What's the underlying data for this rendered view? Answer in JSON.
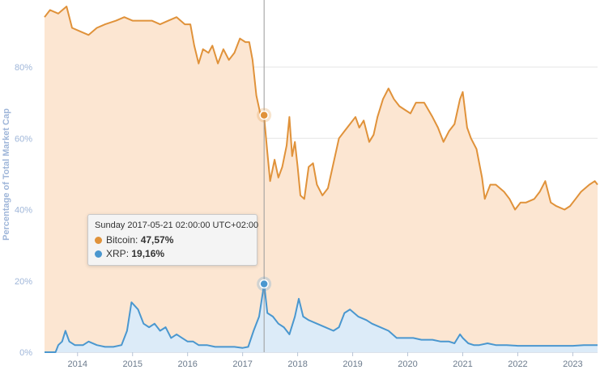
{
  "chart_data": {
    "type": "area",
    "ylabel": "Percentage of Total Market Cap",
    "y_ticks": [
      "0%",
      "20%",
      "40%",
      "60%",
      "80%"
    ],
    "y_tick_values": [
      0,
      20,
      40,
      60,
      80
    ],
    "x_ticks": [
      "2014",
      "2015",
      "2016",
      "2017",
      "2018",
      "2019",
      "2020",
      "2021",
      "2022",
      "2023"
    ],
    "x_tick_values": [
      2014,
      2015,
      2016,
      2017,
      2018,
      2019,
      2020,
      2021,
      2022,
      2023
    ],
    "xlim": [
      2013.4,
      2023.45
    ],
    "ylim": [
      0,
      97
    ],
    "grid": "horizontal",
    "series": [
      {
        "name": "Bitcoin",
        "color": "#e0923a",
        "fill": "#fce6d2",
        "points": [
          [
            2013.4,
            94
          ],
          [
            2013.5,
            96
          ],
          [
            2013.65,
            95
          ],
          [
            2013.8,
            97
          ],
          [
            2013.9,
            91
          ],
          [
            2014.05,
            90
          ],
          [
            2014.2,
            89
          ],
          [
            2014.35,
            91
          ],
          [
            2014.5,
            92
          ],
          [
            2014.7,
            93
          ],
          [
            2014.85,
            94
          ],
          [
            2015.0,
            93
          ],
          [
            2015.15,
            93
          ],
          [
            2015.35,
            93
          ],
          [
            2015.5,
            92
          ],
          [
            2015.65,
            93
          ],
          [
            2015.8,
            94
          ],
          [
            2015.95,
            92
          ],
          [
            2016.05,
            92
          ],
          [
            2016.12,
            86
          ],
          [
            2016.2,
            81
          ],
          [
            2016.28,
            85
          ],
          [
            2016.38,
            84
          ],
          [
            2016.45,
            86
          ],
          [
            2016.55,
            81
          ],
          [
            2016.65,
            85
          ],
          [
            2016.75,
            82
          ],
          [
            2016.85,
            84
          ],
          [
            2016.95,
            88
          ],
          [
            2017.05,
            87
          ],
          [
            2017.12,
            87
          ],
          [
            2017.18,
            82
          ],
          [
            2017.25,
            72
          ],
          [
            2017.32,
            67
          ],
          [
            2017.39,
            66
          ],
          [
            2017.45,
            56
          ],
          [
            2017.5,
            48
          ],
          [
            2017.58,
            54
          ],
          [
            2017.65,
            49
          ],
          [
            2017.72,
            52
          ],
          [
            2017.8,
            58
          ],
          [
            2017.85,
            66
          ],
          [
            2017.9,
            55
          ],
          [
            2017.95,
            59
          ],
          [
            2018.0,
            52
          ],
          [
            2018.05,
            44
          ],
          [
            2018.12,
            43
          ],
          [
            2018.2,
            52
          ],
          [
            2018.28,
            53
          ],
          [
            2018.35,
            47
          ],
          [
            2018.45,
            44
          ],
          [
            2018.55,
            46
          ],
          [
            2018.65,
            53
          ],
          [
            2018.75,
            60
          ],
          [
            2018.85,
            62
          ],
          [
            2018.95,
            64
          ],
          [
            2019.05,
            66
          ],
          [
            2019.12,
            63
          ],
          [
            2019.2,
            65
          ],
          [
            2019.3,
            59
          ],
          [
            2019.38,
            61
          ],
          [
            2019.45,
            66
          ],
          [
            2019.55,
            71
          ],
          [
            2019.65,
            74
          ],
          [
            2019.75,
            71
          ],
          [
            2019.85,
            69
          ],
          [
            2019.95,
            68
          ],
          [
            2020.05,
            67
          ],
          [
            2020.15,
            70
          ],
          [
            2020.3,
            70
          ],
          [
            2020.45,
            66
          ],
          [
            2020.55,
            63
          ],
          [
            2020.65,
            59
          ],
          [
            2020.75,
            62
          ],
          [
            2020.85,
            64
          ],
          [
            2020.95,
            71
          ],
          [
            2021.0,
            73
          ],
          [
            2021.08,
            63
          ],
          [
            2021.15,
            60
          ],
          [
            2021.25,
            57
          ],
          [
            2021.35,
            49
          ],
          [
            2021.4,
            43
          ],
          [
            2021.5,
            47
          ],
          [
            2021.6,
            47
          ],
          [
            2021.75,
            45
          ],
          [
            2021.85,
            43
          ],
          [
            2021.95,
            40
          ],
          [
            2022.05,
            42
          ],
          [
            2022.15,
            42
          ],
          [
            2022.3,
            43
          ],
          [
            2022.4,
            45
          ],
          [
            2022.5,
            48
          ],
          [
            2022.6,
            42
          ],
          [
            2022.7,
            41
          ],
          [
            2022.85,
            40
          ],
          [
            2022.95,
            41
          ],
          [
            2023.05,
            43
          ],
          [
            2023.15,
            45
          ],
          [
            2023.3,
            47
          ],
          [
            2023.4,
            48
          ],
          [
            2023.45,
            47
          ]
        ]
      },
      {
        "name": "XRP",
        "color": "#4a97cf",
        "fill": "#dcebf8",
        "points": [
          [
            2013.4,
            0
          ],
          [
            2013.6,
            0
          ],
          [
            2013.65,
            2
          ],
          [
            2013.72,
            3
          ],
          [
            2013.78,
            6
          ],
          [
            2013.85,
            3
          ],
          [
            2013.95,
            2
          ],
          [
            2014.1,
            2
          ],
          [
            2014.2,
            3
          ],
          [
            2014.35,
            2
          ],
          [
            2014.5,
            1.5
          ],
          [
            2014.65,
            1.5
          ],
          [
            2014.8,
            2
          ],
          [
            2014.9,
            6
          ],
          [
            2014.98,
            14
          ],
          [
            2015.1,
            12
          ],
          [
            2015.2,
            8
          ],
          [
            2015.3,
            7
          ],
          [
            2015.4,
            8
          ],
          [
            2015.5,
            6
          ],
          [
            2015.6,
            7
          ],
          [
            2015.7,
            4
          ],
          [
            2015.8,
            5
          ],
          [
            2015.9,
            4
          ],
          [
            2016.0,
            3
          ],
          [
            2016.1,
            3
          ],
          [
            2016.2,
            2
          ],
          [
            2016.35,
            2
          ],
          [
            2016.5,
            1.5
          ],
          [
            2016.7,
            1.5
          ],
          [
            2016.85,
            1.5
          ],
          [
            2017.0,
            1.2
          ],
          [
            2017.1,
            1.5
          ],
          [
            2017.2,
            6
          ],
          [
            2017.3,
            10
          ],
          [
            2017.39,
            19.16
          ],
          [
            2017.45,
            11
          ],
          [
            2017.55,
            10
          ],
          [
            2017.65,
            8
          ],
          [
            2017.75,
            7
          ],
          [
            2017.85,
            5
          ],
          [
            2017.95,
            10
          ],
          [
            2018.02,
            15
          ],
          [
            2018.1,
            10
          ],
          [
            2018.2,
            9
          ],
          [
            2018.35,
            8
          ],
          [
            2018.5,
            7
          ],
          [
            2018.65,
            6
          ],
          [
            2018.75,
            7
          ],
          [
            2018.85,
            11
          ],
          [
            2018.95,
            12
          ],
          [
            2019.1,
            10
          ],
          [
            2019.25,
            9
          ],
          [
            2019.35,
            8
          ],
          [
            2019.5,
            7
          ],
          [
            2019.65,
            6
          ],
          [
            2019.8,
            4
          ],
          [
            2019.95,
            4
          ],
          [
            2020.1,
            4
          ],
          [
            2020.25,
            3.5
          ],
          [
            2020.45,
            3.5
          ],
          [
            2020.6,
            3
          ],
          [
            2020.75,
            3
          ],
          [
            2020.85,
            2.5
          ],
          [
            2020.95,
            5
          ],
          [
            2021.0,
            4
          ],
          [
            2021.1,
            2.5
          ],
          [
            2021.2,
            2
          ],
          [
            2021.3,
            2
          ],
          [
            2021.45,
            2.5
          ],
          [
            2021.6,
            2
          ],
          [
            2021.8,
            2
          ],
          [
            2022.0,
            1.8
          ],
          [
            2022.2,
            1.8
          ],
          [
            2022.4,
            1.8
          ],
          [
            2022.6,
            1.8
          ],
          [
            2022.8,
            1.8
          ],
          [
            2023.0,
            1.8
          ],
          [
            2023.2,
            2
          ],
          [
            2023.45,
            2
          ]
        ]
      }
    ],
    "crosshair_x": 2017.39,
    "tooltip": {
      "date": "Sunday 2017-05-21 02:00:00 UTC+02:00",
      "rows": [
        {
          "name": "Bitcoin",
          "color": "#e0923a",
          "value_label": "47,57%",
          "y": 66.5
        },
        {
          "name": "XRP",
          "color": "#4a97cf",
          "value_label": "19,16%",
          "y": 19.16
        }
      ]
    }
  }
}
